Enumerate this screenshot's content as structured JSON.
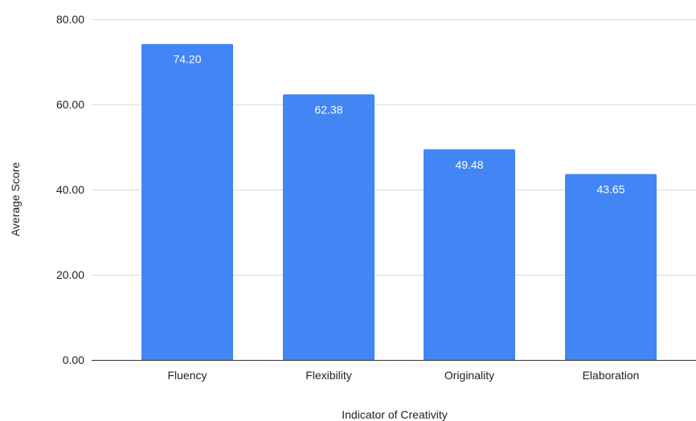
{
  "chart_data": {
    "type": "bar",
    "categories": [
      "Fluency",
      "Flexibility",
      "Originality",
      "Elaboration"
    ],
    "values": [
      74.2,
      62.38,
      49.48,
      43.65
    ],
    "data_labels": [
      "74.20",
      "62.38",
      "49.48",
      "43.65"
    ],
    "title": "",
    "xlabel": "Indicator of Creativity",
    "ylabel": "Average Score",
    "ylim": [
      0,
      80
    ],
    "y_ticks": [
      0,
      20,
      40,
      60,
      80
    ],
    "y_tick_labels": [
      "0.00",
      "20.00",
      "40.00",
      "60.00",
      "80.00"
    ],
    "grid": true,
    "legend": "none",
    "bar_color": "#4285f4"
  }
}
